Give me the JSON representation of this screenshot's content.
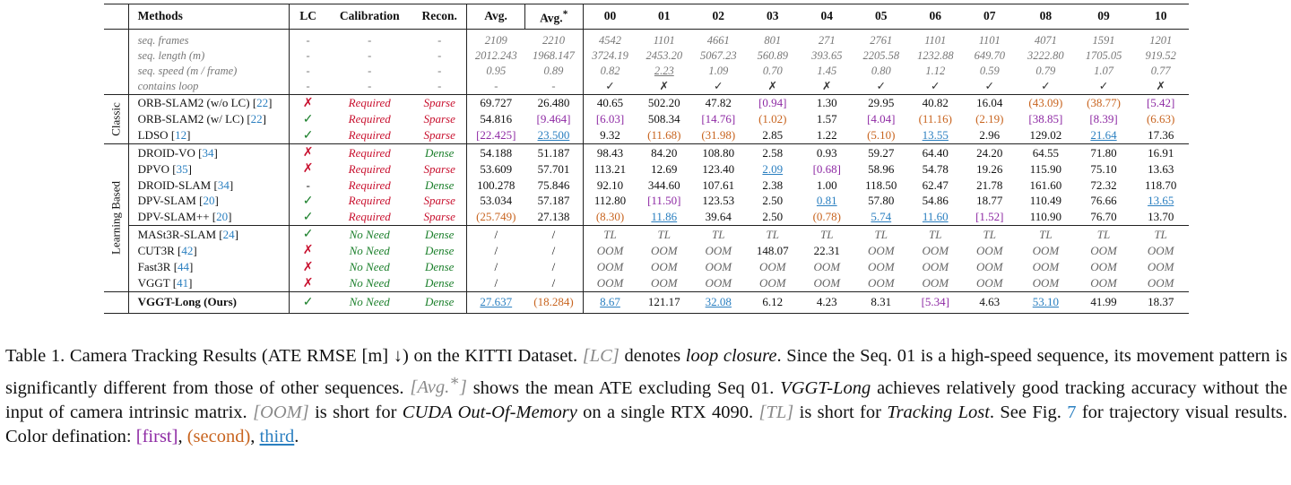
{
  "table": {
    "headers": [
      "Methods",
      "LC",
      "Calibration",
      "Recon.",
      "Avg.",
      "Avg.*",
      "00",
      "01",
      "02",
      "03",
      "04",
      "05",
      "06",
      "07",
      "08",
      "09",
      "10"
    ],
    "meta_rows": [
      {
        "label": "seq. frames",
        "lc": "-",
        "cal": "-",
        "rec": "-",
        "vals": [
          "2109",
          "2210",
          "4542",
          "1101",
          "4661",
          "801",
          "271",
          "2761",
          "1101",
          "1101",
          "4071",
          "1591",
          "1201"
        ]
      },
      {
        "label": "seq. length (m)",
        "lc": "-",
        "cal": "-",
        "rec": "-",
        "vals": [
          "2012.243",
          "1968.147",
          "3724.19",
          "2453.20",
          "5067.23",
          "560.89",
          "393.65",
          "2205.58",
          "1232.88",
          "649.70",
          "3222.80",
          "1705.05",
          "919.52"
        ]
      },
      {
        "label": "seq. speed (m / frame)",
        "lc": "-",
        "cal": "-",
        "rec": "-",
        "vals": [
          "0.95",
          "0.89",
          "0.82",
          "2.23",
          "1.09",
          "0.70",
          "1.45",
          "0.80",
          "1.12",
          "0.59",
          "0.79",
          "1.07",
          "0.77"
        ]
      },
      {
        "label": "contains loop",
        "lc": "-",
        "cal": "-",
        "rec": "-",
        "vals": [
          "-",
          "-",
          "✓",
          "✗",
          "✓",
          "✗",
          "✗",
          "✓",
          "✓",
          "✓",
          "✓",
          "✓",
          "✗"
        ]
      }
    ],
    "groups": [
      {
        "name": "Classic",
        "rows": [
          {
            "method": "ORB-SLAM2 (w/o LC)",
            "cite": "22",
            "lc": "✗",
            "cal": "Required",
            "rec": "Sparse",
            "vals": [
              "69.727",
              "26.480",
              "40.65",
              "502.20",
              "47.82",
              "[0.94]",
              "1.30",
              "29.95",
              "40.82",
              "16.04",
              "(43.09)",
              "(38.77)",
              "[5.42]"
            ]
          },
          {
            "method": "ORB-SLAM2 (w/ LC)",
            "cite": "22",
            "lc": "✓",
            "cal": "Required",
            "rec": "Sparse",
            "vals": [
              "54.816",
              "[9.464]",
              "[6.03]",
              "508.34",
              "[14.76]",
              "(1.02)",
              "1.57",
              "[4.04]",
              "(11.16)",
              "(2.19)",
              "[38.85]",
              "[8.39]",
              "(6.63)"
            ]
          },
          {
            "method": "LDSO",
            "cite": "12",
            "lc": "✓",
            "cal": "Required",
            "rec": "Sparse",
            "vals": [
              "[22.425]",
              "23.500",
              "9.32",
              "(11.68)",
              "(31.98)",
              "2.85",
              "1.22",
              "(5.10)",
              "13.55",
              "2.96",
              "129.02",
              "21.64",
              "17.36"
            ]
          }
        ]
      },
      {
        "name": "Learning Based",
        "rows": [
          {
            "method": "DROID-VO",
            "cite": "34",
            "lc": "✗",
            "cal": "Required",
            "rec": "Dense",
            "vals": [
              "54.188",
              "51.187",
              "98.43",
              "84.20",
              "108.80",
              "2.58",
              "0.93",
              "59.27",
              "64.40",
              "24.20",
              "64.55",
              "71.80",
              "16.91"
            ]
          },
          {
            "method": "DPVO",
            "cite": "35",
            "lc": "✗",
            "cal": "Required",
            "rec": "Sparse",
            "vals": [
              "53.609",
              "57.701",
              "113.21",
              "12.69",
              "123.40",
              "2.09",
              "[0.68]",
              "58.96",
              "54.78",
              "19.26",
              "115.90",
              "75.10",
              "13.63"
            ]
          },
          {
            "method": "DROID-SLAM",
            "cite": "34",
            "lc": "-",
            "cal": "Required",
            "rec": "Dense",
            "vals": [
              "100.278",
              "75.846",
              "92.10",
              "344.60",
              "107.61",
              "2.38",
              "1.00",
              "118.50",
              "62.47",
              "21.78",
              "161.60",
              "72.32",
              "118.70"
            ]
          },
          {
            "method": "DPV-SLAM",
            "cite": "20",
            "lc": "✓",
            "cal": "Required",
            "rec": "Sparse",
            "vals": [
              "53.034",
              "57.187",
              "112.80",
              "[11.50]",
              "123.53",
              "2.50",
              "0.81",
              "57.80",
              "54.86",
              "18.77",
              "110.49",
              "76.66",
              "13.65"
            ]
          },
          {
            "method": "DPV-SLAM++",
            "cite": "20",
            "lc": "✓",
            "cal": "Required",
            "rec": "Sparse",
            "vals": [
              "(25.749)",
              "27.138",
              "(8.30)",
              "11.86",
              "39.64",
              "2.50",
              "(0.78)",
              "5.74",
              "11.60",
              "[1.52]",
              "110.90",
              "76.70",
              "13.70"
            ]
          },
          {
            "method": "MASt3R-SLAM",
            "cite": "24",
            "lc": "✓",
            "cal": "No Need",
            "rec": "Dense",
            "sub": true,
            "vals": [
              "/",
              "/",
              "TL",
              "TL",
              "TL",
              "TL",
              "TL",
              "TL",
              "TL",
              "TL",
              "TL",
              "TL",
              "TL"
            ]
          },
          {
            "method": "CUT3R",
            "cite": "42",
            "lc": "✗",
            "cal": "No Need",
            "rec": "Dense",
            "vals": [
              "/",
              "/",
              "OOM",
              "OOM",
              "OOM",
              "148.07",
              "22.31",
              "OOM",
              "OOM",
              "OOM",
              "OOM",
              "OOM",
              "OOM"
            ]
          },
          {
            "method": "Fast3R",
            "cite": "44",
            "lc": "✗",
            "cal": "No Need",
            "rec": "Dense",
            "vals": [
              "/",
              "/",
              "OOM",
              "OOM",
              "OOM",
              "OOM",
              "OOM",
              "OOM",
              "OOM",
              "OOM",
              "OOM",
              "OOM",
              "OOM"
            ]
          },
          {
            "method": "VGGT",
            "cite": "41",
            "lc": "✗",
            "cal": "No Need",
            "rec": "Dense",
            "vals": [
              "/",
              "/",
              "OOM",
              "OOM",
              "OOM",
              "OOM",
              "OOM",
              "OOM",
              "OOM",
              "OOM",
              "OOM",
              "OOM",
              "OOM"
            ]
          }
        ]
      }
    ],
    "ours": {
      "method": "VGGT-Long (Ours)",
      "lc": "✓",
      "cal": "No Need",
      "rec": "Dense",
      "vals": [
        "27.637",
        "(18.284)",
        "8.67",
        "121.17",
        "32.08",
        "6.12",
        "4.23",
        "8.31",
        "[5.34]",
        "4.63",
        "53.10",
        "41.99",
        "18.37"
      ]
    },
    "third_cells": [
      "LDSO|1",
      "LDSO|8",
      "LDSO|11",
      "DPVO|5",
      "DPV-SLAM|6",
      "DPV-SLAM|12",
      "DPV-SLAM++|3",
      "DPV-SLAM++|7",
      "DPV-SLAM++|8",
      "OURS|0",
      "OURS|2",
      "OURS|4",
      "OURS|10"
    ]
  },
  "caption": {
    "c1": "Table 1. Camera Tracking Results (ATE RMSE [m] ↓) on the KITTI Dataset. ",
    "c2": "[LC]",
    "c3": " denotes ",
    "c4": "loop closure",
    "c5": ". Since the Seq. 01 is a high-speed sequence, its movement pattern is significantly different from those of other sequences. ",
    "c6": "[Avg.",
    "c6s": "∗",
    "c6b": "]",
    "c7": " shows the mean ATE excluding Seq 01. ",
    "c8": "VGGT-Long",
    "c9": " achieves relatively good tracking accuracy without the input of camera intrinsic matrix. ",
    "c10": "[OOM]",
    "c11": " is short for ",
    "c12": "CUDA Out-Of-Memory",
    "c13": " on a single RTX 4090. ",
    "c14": "[TL]",
    "c15": " is short for ",
    "c16": "Tracking Lost",
    "c17": ". See Fig. ",
    "c18": "7",
    "c19": " for trajectory visual results. Color defination: ",
    "c20": "[first]",
    "c21": ", ",
    "c22": "(second)",
    "c23": ", ",
    "c24": "third",
    "c25": "."
  }
}
